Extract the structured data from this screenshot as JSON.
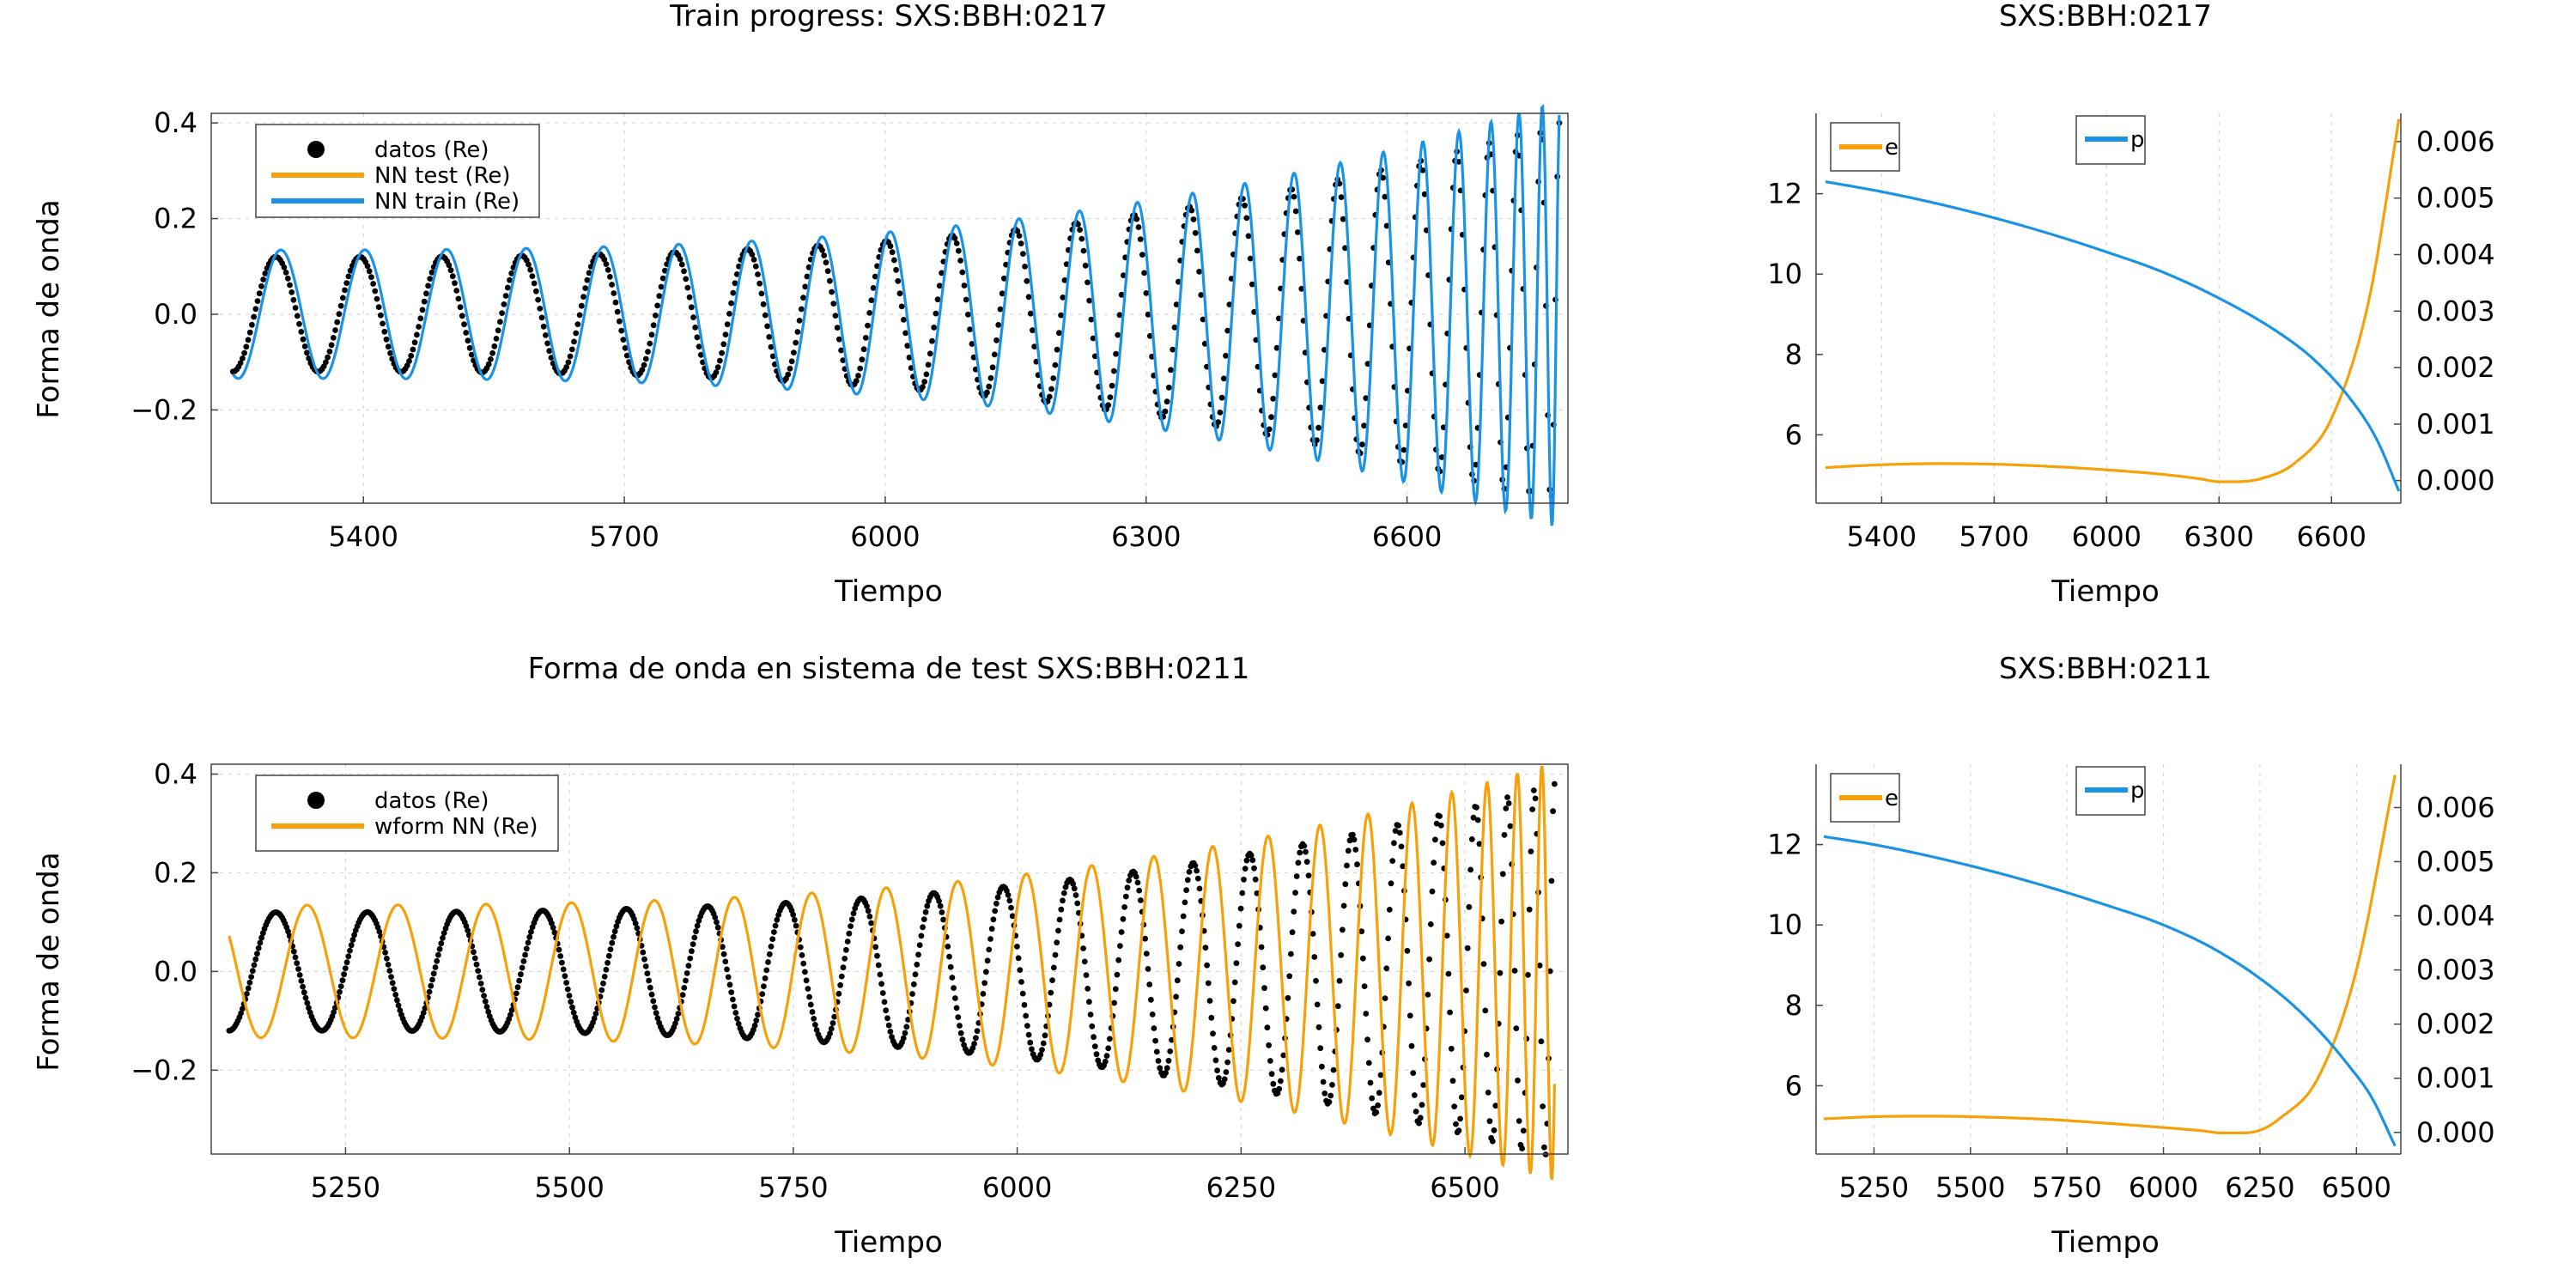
{
  "colors": {
    "data": "#000000",
    "orange": "#f6a10a",
    "blue": "#1a93e6"
  },
  "chart_data": [
    {
      "id": "top_left",
      "type": "line",
      "title": "Train progress: SXS:BBH:0217",
      "xlabel": "Tiempo",
      "ylabel": "Forma de onda",
      "xlim": [
        5225,
        6785
      ],
      "ylim": [
        -0.395,
        0.42
      ],
      "xticks": [
        5400,
        5700,
        6000,
        6300,
        6600
      ],
      "yticks": [
        -0.2,
        0.0,
        0.2,
        0.4
      ],
      "ytick_labels": [
        "−0.2",
        "0.0",
        "0.2",
        "0.4"
      ],
      "grid": true,
      "legend_position": "top-left",
      "signal": {
        "t0": 5250,
        "t1": 6775,
        "tc": 6790,
        "amp0": 0.12,
        "amp1": 0.4,
        "cycles": 23.5
      },
      "series": [
        {
          "name": "datos (Re)",
          "kind": "points",
          "color_key": "data",
          "offset": 0.0,
          "points": 700
        },
        {
          "name": "NN test (Re)",
          "kind": "line",
          "color_key": "orange",
          "hidden": true
        },
        {
          "name": "NN train (Re)",
          "kind": "line",
          "color_key": "blue",
          "offset": -0.06,
          "amp_scale": 1.12
        }
      ]
    },
    {
      "id": "top_right",
      "type": "line",
      "title": "SXS:BBH:0217",
      "xlabel": "Tiempo",
      "xlim": [
        5225,
        6785
      ],
      "xticks": [
        5400,
        5700,
        6000,
        6300,
        6600
      ],
      "ylim_left": [
        4.3,
        14.0
      ],
      "yticks_left": [
        6,
        8,
        10,
        12
      ],
      "ylim_right": [
        -0.0004,
        0.0065
      ],
      "yticks_right": [
        0.0,
        0.001,
        0.002,
        0.003,
        0.004,
        0.005,
        0.006
      ],
      "grid": true,
      "series": [
        {
          "name": "e",
          "axis": "right",
          "color_key": "orange",
          "x": [
            5250,
            5400,
            5550,
            5700,
            5850,
            6000,
            6150,
            6250,
            6300,
            6350,
            6420,
            6500,
            6600,
            6700,
            6780
          ],
          "y": [
            0.00023,
            0.00028,
            0.0003,
            0.00029,
            0.00025,
            0.00019,
            0.00011,
            3e-05,
            -2e-05,
            -2e-05,
            5e-05,
            0.0003,
            0.0011,
            0.0032,
            0.0064
          ]
        },
        {
          "name": "p",
          "axis": "left",
          "color_key": "blue",
          "x": [
            5250,
            5400,
            5550,
            5700,
            5850,
            6000,
            6150,
            6300,
            6450,
            6550,
            6650,
            6720,
            6780
          ],
          "y": [
            12.3,
            12.05,
            11.75,
            11.4,
            11.0,
            10.55,
            10.05,
            9.4,
            8.6,
            7.9,
            6.9,
            5.9,
            4.6
          ]
        }
      ]
    },
    {
      "id": "bottom_left",
      "type": "line",
      "title": "Forma de onda en sistema de test SXS:BBH:0211",
      "xlabel": "Tiempo",
      "ylabel": "Forma de onda",
      "xlim": [
        5100,
        6615
      ],
      "ylim": [
        -0.37,
        0.42
      ],
      "xticks": [
        5250,
        5500,
        5750,
        6000,
        6250,
        6500
      ],
      "yticks": [
        -0.2,
        0.0,
        0.2,
        0.4
      ],
      "ytick_labels": [
        "−0.2",
        "0.0",
        "0.2",
        "0.4"
      ],
      "grid": true,
      "legend_position": "top-left",
      "signal": {
        "t0": 5120,
        "t1": 6600,
        "tc": 6615,
        "amp0": 0.12,
        "amp1": 0.38,
        "cycles": 21.5
      },
      "series": [
        {
          "name": "datos (Re)",
          "kind": "points",
          "color_key": "data",
          "offset": 0.0,
          "points": 900
        },
        {
          "name": "wform NN (Re)",
          "kind": "line",
          "color_key": "orange",
          "offset": -0.34,
          "amp_scale": 1.12
        }
      ]
    },
    {
      "id": "bottom_right",
      "type": "line",
      "title": "SXS:BBH:0211",
      "xlabel": "Tiempo",
      "xlim": [
        5100,
        6615
      ],
      "xticks": [
        5250,
        5500,
        5750,
        6000,
        6250,
        6500
      ],
      "ylim_left": [
        4.3,
        14.0
      ],
      "yticks_left": [
        6,
        8,
        10,
        12
      ],
      "ylim_right": [
        -0.0004,
        0.0068
      ],
      "yticks_right": [
        0.0,
        0.001,
        0.002,
        0.003,
        0.004,
        0.005,
        0.006
      ],
      "grid": true,
      "series": [
        {
          "name": "e",
          "axis": "right",
          "color_key": "orange",
          "x": [
            5120,
            5250,
            5400,
            5550,
            5700,
            5850,
            6000,
            6100,
            6150,
            6200,
            6250,
            6300,
            6400,
            6500,
            6600
          ],
          "y": [
            0.00025,
            0.00029,
            0.0003,
            0.00028,
            0.00024,
            0.00017,
            9e-05,
            3e-05,
            -1e-05,
            -1e-05,
            4e-05,
            0.00025,
            0.001,
            0.003,
            0.0066
          ]
        },
        {
          "name": "p",
          "axis": "left",
          "color_key": "blue",
          "x": [
            5120,
            5250,
            5400,
            5550,
            5700,
            5850,
            6000,
            6150,
            6300,
            6400,
            6480,
            6540,
            6600
          ],
          "y": [
            12.2,
            12.0,
            11.7,
            11.35,
            10.95,
            10.5,
            10.0,
            9.3,
            8.3,
            7.4,
            6.5,
            5.7,
            4.5
          ]
        }
      ]
    }
  ],
  "tick_format": {
    "right_axis_decimals": 3,
    "left_bottom_decimals": 0
  }
}
